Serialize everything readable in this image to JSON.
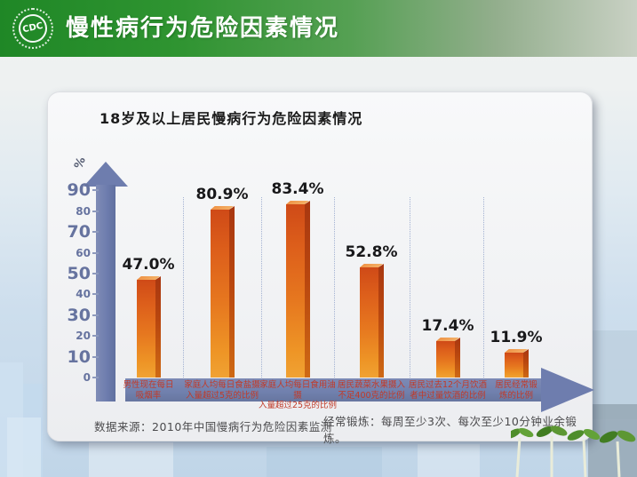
{
  "header": {
    "title": "慢性病行为危险因素情况",
    "logo_text": "CDC"
  },
  "chart": {
    "title": "18岁及以上居民慢病行为危险因素情况",
    "y_axis_unit": "%"
  },
  "chart_data": {
    "type": "bar",
    "title": "18岁及以上居民慢病行为危险因素情况",
    "categories": [
      "男性现在每日吸烟率",
      "家庭人均每日食盐摄入量超过5克的比例",
      "家庭人均每日食用油摄入量超过25克的比例",
      "居民蔬菜水果摄入不足400克的比例",
      "居民过去12个月饮酒者中过量饮酒的比例",
      "居民经常锻炼的比例"
    ],
    "categories_lines": [
      [
        "男性现在每日",
        "吸烟率"
      ],
      [
        "家庭人均每日食盐摄",
        "入量超过5克的比例"
      ],
      [
        "家庭人均每日食用油摄",
        "入量超过25克的比例"
      ],
      [
        "居民蔬菜水果摄入",
        "不足400克的比例"
      ],
      [
        "居民过去12个月饮酒",
        "者中过量饮酒的比例"
      ],
      [
        "居民经常锻",
        "炼的比例"
      ]
    ],
    "values": [
      47.0,
      80.9,
      83.4,
      52.8,
      17.4,
      11.9
    ],
    "value_labels": [
      "47.0%",
      "80.9%",
      "83.4%",
      "52.8%",
      "17.4%",
      "11.9%"
    ],
    "xlabel": "",
    "ylabel": "%",
    "ylim": [
      0,
      90
    ],
    "yticks": [
      0,
      10,
      20,
      30,
      40,
      50,
      60,
      70,
      80,
      90
    ],
    "grid": false,
    "legend": "none"
  },
  "notes": {
    "source": "数据来源：2010年中国慢病行为危险因素监测",
    "definition": "经常锻炼：每周至少3次、每次至少10分钟业余锻炼。"
  },
  "colors": {
    "header_green": "#2f9431",
    "bar_orange": "#e6771f",
    "bar_side_dark": "#b9470f",
    "axis_blue": "#6e7dae",
    "category_label_red": "#c13a28",
    "value_label_black": "#18181a"
  }
}
